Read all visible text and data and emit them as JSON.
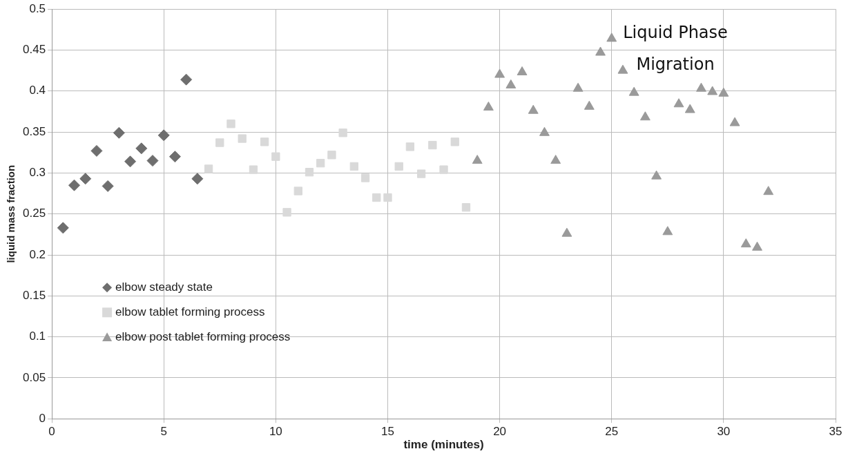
{
  "chart_data": {
    "type": "scatter",
    "xlabel": "time (minutes)",
    "ylabel": "liquid mass fraction",
    "xlim": [
      0,
      35
    ],
    "xticks": [
      0,
      5,
      10,
      15,
      20,
      25,
      30,
      35
    ],
    "ylim": [
      0,
      0.5
    ],
    "yticks": [
      0,
      0.05,
      0.1,
      0.15,
      0.2,
      0.25,
      0.3,
      0.35,
      0.4,
      0.45,
      0.5
    ],
    "grid": true,
    "legend": "left",
    "annotations": [
      "Liquid Phase Migration"
    ],
    "series": [
      {
        "name": "elbow steady state",
        "color": "#6e6e6e",
        "marker": "diamond",
        "x": [
          0.5,
          1,
          1.5,
          2,
          2.5,
          3,
          3.5,
          4,
          4.5,
          5,
          5.5,
          6,
          6.5
        ],
        "values": [
          0.233,
          0.285,
          0.293,
          0.327,
          0.284,
          0.349,
          0.314,
          0.33,
          0.315,
          0.346,
          0.32,
          0.414,
          0.293
        ]
      },
      {
        "name": "elbow tablet forming process",
        "color": "#d9d9d9",
        "marker": "square",
        "x": [
          7,
          7.5,
          8,
          8.5,
          9,
          9.5,
          10,
          10.5,
          11,
          11.5,
          12,
          12.5,
          13,
          13.5,
          14,
          14.5,
          15,
          15.5,
          16,
          16.5,
          17,
          17.5,
          18,
          18.5
        ],
        "values": [
          0.305,
          0.337,
          0.36,
          0.342,
          0.304,
          0.338,
          0.32,
          0.252,
          0.278,
          0.301,
          0.312,
          0.322,
          0.349,
          0.308,
          0.294,
          0.27,
          0.27,
          0.308,
          0.332,
          0.299,
          0.334,
          0.304,
          0.338,
          0.258
        ]
      },
      {
        "name": "elbow post tablet forming process",
        "color": "#9a9a9a",
        "marker": "triangle",
        "x": [
          19,
          19.5,
          20,
          20.5,
          21,
          21.5,
          22,
          22.5,
          23,
          23.5,
          24,
          24.5,
          25,
          25.5,
          26,
          26.5,
          27,
          27.5,
          28,
          28.5,
          29,
          29.5,
          30,
          30.5,
          31,
          31.5,
          32
        ],
        "values": [
          0.315,
          0.38,
          0.42,
          0.407,
          0.423,
          0.376,
          0.349,
          0.315,
          0.226,
          0.403,
          0.381,
          0.447,
          0.464,
          0.425,
          0.398,
          0.368,
          0.296,
          0.228,
          0.384,
          0.377,
          0.403,
          0.399,
          0.397,
          0.361,
          0.213,
          0.209,
          0.277
        ]
      }
    ]
  }
}
